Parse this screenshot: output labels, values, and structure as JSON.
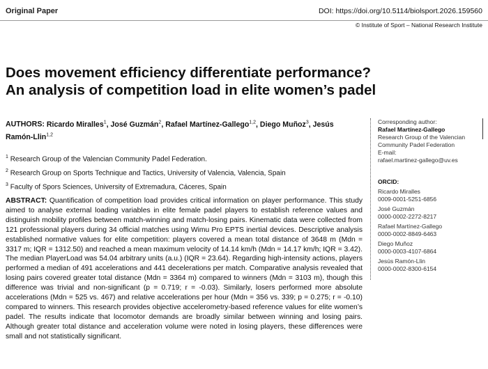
{
  "header": {
    "section": "Original Paper",
    "doi": "DOI: https://doi.org/10.5114/biolsport.2026.159560",
    "publisher": "© Institute of Sport – National Research Institute"
  },
  "title": [
    "Does movement efficiency differentiate performance?",
    "An analysis of competition load in elite women’s padel"
  ],
  "authors": {
    "label": "AUTHORS:",
    "list": [
      {
        "name": "Ricardo Miralles",
        "aff": "1"
      },
      {
        "name": "José Guzmán",
        "aff": "2"
      },
      {
        "name": "Rafael Martínez-Gallego",
        "aff": "1,2"
      },
      {
        "name": "Diego Muñoz",
        "aff": "3"
      },
      {
        "name": "Jesús Ramón-Llin",
        "aff": "1,2"
      }
    ]
  },
  "affiliations": [
    {
      "num": "1",
      "text": "Research Group of the Valencian Community Padel Federation."
    },
    {
      "num": "2",
      "text": "Research Group on Sports Technique and Tactics, University of Valencia, Valencia, Spain"
    },
    {
      "num": "3",
      "text": "Faculty of Spors Sciences, University of Extremadura, Cáceres, Spain"
    }
  ],
  "abstract": {
    "label": "ABSTRACT:",
    "text": "Quantification of competition load provides critical information on player performance. This study aimed to analyse external loading variables in elite female padel players to establish reference values and distinguish mobility profiles between match-winning and match-losing pairs. Kinematic data were collected from 121 professional players during 34 official matches using Wimu Pro EPTS inertial devices. Descriptive analysis established normative values for elite competition: players covered a mean total distance of 3648 m (Mdn = 3317 m; IQR = 1312.50) and reached a mean maximum velocity of 14.14 km/h (Mdn = 14.17 km/h; IQR = 3.42). The median PlayerLoad was 54.04 arbitrary units (a.u.) (IQR = 23.64). Regarding high-intensity actions, players performed a median of 491 accelerations and 441 decelerations per match. Comparative analysis revealed that losing pairs covered greater total distance (Mdn = 3364 m) compared to winners (Mdn = 3103 m), though this difference was trivial and non-significant (p = 0.719; r = -0.03). Similarly, losers performed more absolute accelerations (Mdn = 525 vs. 467) and relative accelerations per hour (Mdn = 356 vs. 339; p = 0.275; r = -0.10) compared to winners. This research provides objective accelerometry-based reference values for elite women’s padel. The results indicate that locomotor demands are broadly similar between winning and losing pairs. Although greater total distance and acceleration volume were noted in losing players, these differences were small and not statistically significant."
  },
  "sidebar": {
    "corresponding_label": "Corresponding author:",
    "corresponding_name": "Rafael Martínez-Gallego",
    "address": "Research Group of the Valencian Community Padel Federation",
    "email_label": "E-mail:",
    "email": "rafael.martinez-gallego@uv.es",
    "orcid_label": "ORCID:",
    "orcid": [
      {
        "name": "Ricardo Miralles",
        "id": "0009-0001-5251-6856"
      },
      {
        "name": "José Guzmán",
        "id": "0000-0002-2272-8217"
      },
      {
        "name": "Rafael Martínez-Gallego",
        "id": "0000-0002-8849-6463"
      },
      {
        "name": "Diego Muñoz",
        "id": "0000-0003-4107-6864"
      },
      {
        "name": "Jesús Ramón-Llin",
        "id": "0000-0002-8300-6154"
      }
    ]
  }
}
